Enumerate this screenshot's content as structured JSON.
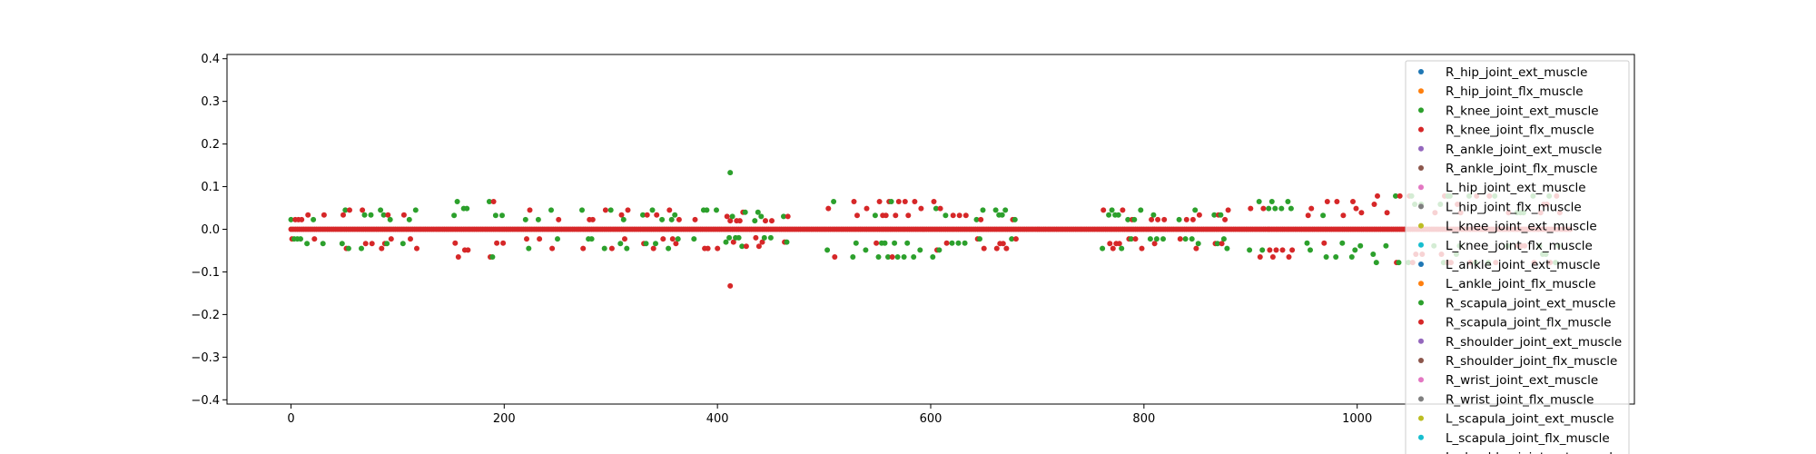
{
  "chart_data": {
    "type": "scatter",
    "title": "",
    "xlabel": "",
    "ylabel": "",
    "xlim": [
      -60,
      1260
    ],
    "ylim": [
      -0.41,
      0.41
    ],
    "x_ticks": [
      0,
      200,
      400,
      600,
      800,
      1000
    ],
    "x_tick_labels": [
      "0",
      "200",
      "400",
      "600",
      "800",
      "1000"
    ],
    "y_ticks": [
      0.4,
      0.3,
      0.2,
      0.1,
      0.0,
      -0.1,
      -0.2,
      -0.3,
      -0.4
    ],
    "y_tick_labels": [
      "0.4",
      "0.3",
      "0.2",
      "0.1",
      "0.0",
      "−0.1",
      "−0.2",
      "−0.3",
      "−0.4"
    ],
    "grid": false,
    "legend_position": "right",
    "series": [
      {
        "name": "R_hip_joint_ext_muscle",
        "color": "#1f77b4"
      },
      {
        "name": "R_hip_joint_flx_muscle",
        "color": "#ff7f0e"
      },
      {
        "name": "R_knee_joint_ext_muscle",
        "color": "#2ca02c"
      },
      {
        "name": "R_knee_joint_flx_muscle",
        "color": "#d62728"
      },
      {
        "name": "R_ankle_joint_ext_muscle",
        "color": "#9467bd"
      },
      {
        "name": "R_ankle_joint_flx_muscle",
        "color": "#8c564b"
      },
      {
        "name": "L_hip_joint_ext_muscle",
        "color": "#e377c2"
      },
      {
        "name": "L_hip_joint_flx_muscle",
        "color": "#7f7f7f"
      },
      {
        "name": "L_knee_joint_ext_muscle",
        "color": "#bcbd22"
      },
      {
        "name": "L_knee_joint_flx_muscle",
        "color": "#17becf"
      },
      {
        "name": "L_ankle_joint_ext_muscle",
        "color": "#1f77b4"
      },
      {
        "name": "L_ankle_joint_flx_muscle",
        "color": "#ff7f0e"
      },
      {
        "name": "R_scapula_joint_ext_muscle",
        "color": "#2ca02c"
      },
      {
        "name": "R_scapula_joint_flx_muscle",
        "color": "#d62728"
      },
      {
        "name": "R_shoulder_joint_ext_muscle",
        "color": "#9467bd"
      },
      {
        "name": "R_shoulder_joint_flx_muscle",
        "color": "#8c564b"
      },
      {
        "name": "R_wrist_joint_ext_muscle",
        "color": "#e377c2"
      },
      {
        "name": "R_wrist_joint_flx_muscle",
        "color": "#7f7f7f"
      },
      {
        "name": "L_scapula_joint_ext_muscle",
        "color": "#bcbd22"
      },
      {
        "name": "L_scapula_joint_flx_muscle",
        "color": "#17becf"
      },
      {
        "name": "L_shoulder_joint_ext_muscle",
        "color": "#1f77b4"
      }
    ],
    "baseline_x_range": [
      0,
      1200
    ],
    "baseline_y": 0.0,
    "highlighted_points": [
      {
        "series": "R_knee_joint_ext_muscle",
        "x": 412,
        "y": 0.133
      },
      {
        "series": "R_knee_joint_flx_muscle",
        "x": 412,
        "y": -0.133
      },
      {
        "series": "R_knee_joint_ext_muscle",
        "x": 1085,
        "y": 0.078
      },
      {
        "series": "R_knee_joint_flx_muscle",
        "x": 1085,
        "y": -0.078
      }
    ],
    "activity_bursts": [
      {
        "x": [
          0,
          120
        ],
        "amplitude": 0.045
      },
      {
        "x": [
          150,
          200
        ],
        "amplitude": 0.065
      },
      {
        "x": [
          220,
          250
        ],
        "amplitude": 0.045
      },
      {
        "x": [
          270,
          400
        ],
        "amplitude": 0.045
      },
      {
        "x": [
          405,
          480
        ],
        "amplitude": 0.04
      },
      {
        "x": [
          500,
          640
        ],
        "amplitude": 0.065
      },
      {
        "x": [
          640,
          680
        ],
        "amplitude": 0.045
      },
      {
        "x": [
          740,
          880
        ],
        "amplitude": 0.045
      },
      {
        "x": [
          890,
          1000
        ],
        "amplitude": 0.065
      },
      {
        "x": [
          1000,
          1200
        ],
        "amplitude": 0.078
      }
    ]
  }
}
